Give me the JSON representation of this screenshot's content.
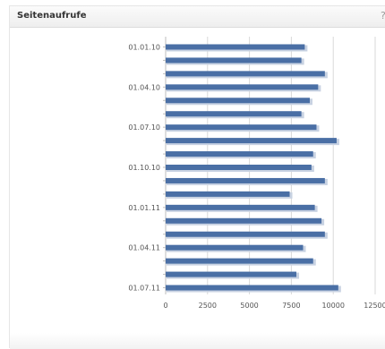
{
  "widget": {
    "title": "Seitenaufrufe",
    "help_glyph": "?"
  },
  "chart_data": {
    "type": "bar",
    "orientation": "horizontal",
    "title": "Seitenaufrufe",
    "xlabel": "",
    "ylabel": "",
    "xlim": [
      0,
      12500
    ],
    "x_ticks": [
      0,
      2500,
      5000,
      7500,
      10000,
      12500
    ],
    "grid": true,
    "categories": [
      "01.01.10",
      "",
      "",
      "01.04.10",
      "",
      "",
      "01.07.10",
      "",
      "",
      "01.10.10",
      "",
      "",
      "01.01.11",
      "",
      "",
      "01.04.11",
      "",
      "",
      "01.07.11"
    ],
    "values": [
      8300,
      8100,
      9500,
      9100,
      8600,
      8100,
      9000,
      10200,
      8800,
      8700,
      9500,
      7400,
      8900,
      9300,
      9500,
      8200,
      8800,
      7800,
      10300
    ],
    "colors": {
      "bar": "#4a6fa5",
      "bar_shadow": "#c8d2e2",
      "grid": "#d9d9d9"
    }
  }
}
